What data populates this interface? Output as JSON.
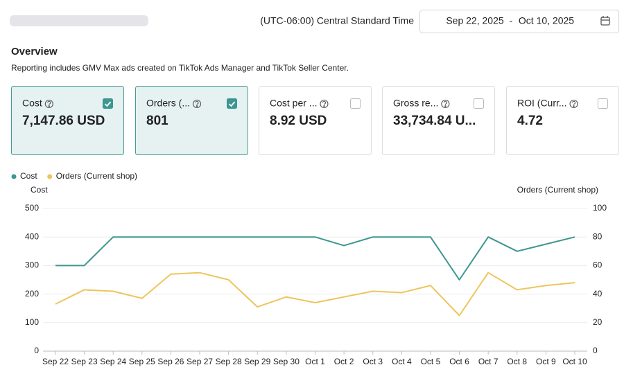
{
  "header": {
    "timezone": "(UTC-06:00) Central Standard Time",
    "date_start": "Sep 22, 2025",
    "date_separator": "-",
    "date_end": "Oct 10, 2025"
  },
  "overview": {
    "title": "Overview",
    "note": "Reporting includes GMV Max ads created on TikTok Ads Manager and TikTok Seller Center."
  },
  "metric_cards": [
    {
      "label": "Cost",
      "value": "7,147.86 USD",
      "selected": true
    },
    {
      "label": "Orders (...",
      "value": "801",
      "selected": true
    },
    {
      "label": "Cost per ...",
      "value": "8.92 USD",
      "selected": false
    },
    {
      "label": "Gross re...",
      "value": "33,734.84 U...",
      "selected": false
    },
    {
      "label": "ROI (Curr...",
      "value": "4.72",
      "selected": false
    }
  ],
  "chart_data": {
    "type": "line",
    "y_label": "Cost",
    "y2_label": "Orders (Current shop)",
    "categories": [
      "Sep 22",
      "Sep 23",
      "Sep 24",
      "Sep 25",
      "Sep 26",
      "Sep 27",
      "Sep 28",
      "Sep 29",
      "Sep 30",
      "Oct 1",
      "Oct 2",
      "Oct 3",
      "Oct 4",
      "Oct 5",
      "Oct 6",
      "Oct 7",
      "Oct 8",
      "Oct 9",
      "Oct 10"
    ],
    "series": [
      {
        "name": "Cost",
        "color": "#3d9690",
        "values": [
          300,
          300,
          400,
          400,
          400,
          400,
          400,
          400,
          400,
          400,
          370,
          400,
          400,
          400,
          250,
          400,
          350,
          375,
          400
        ]
      },
      {
        "name": "Orders (Current shop)",
        "color": "#edc55c",
        "axis": "y2",
        "values": [
          33,
          43,
          42,
          37,
          54,
          55,
          50,
          31,
          38,
          34,
          38,
          42,
          41,
          46,
          25,
          55,
          43,
          46,
          48
        ]
      }
    ],
    "ylim": [
      0,
      500
    ],
    "yticks": [
      0,
      100,
      200,
      300,
      400,
      500
    ],
    "y2lim": [
      0,
      100
    ],
    "y2ticks": [
      0,
      20,
      40,
      60,
      80,
      100
    ],
    "grid": true
  }
}
